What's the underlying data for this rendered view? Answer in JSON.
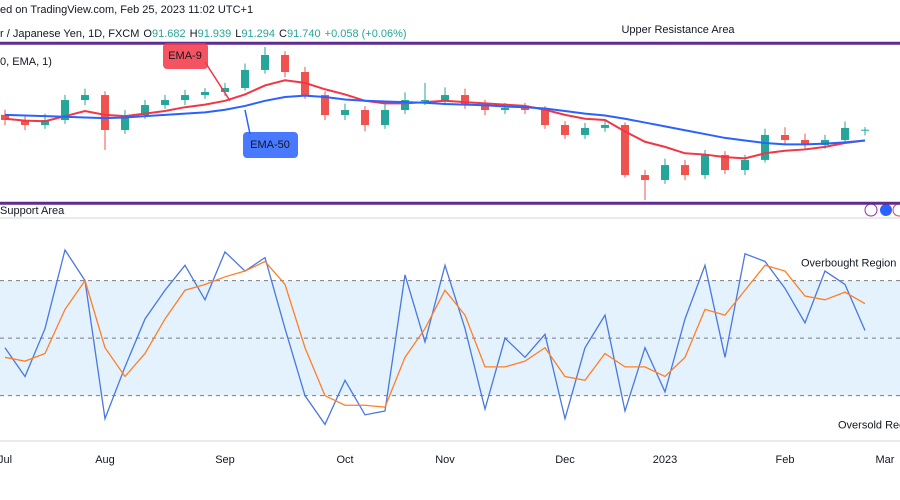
{
  "header": {
    "source": "ed on TradingView.com, Feb 25, 2023 11:02 UTC+1",
    "symbol": "r / Japanese Yen, 1D, FXCM",
    "ohlc": [
      {
        "key": "O",
        "value": "91.682"
      },
      {
        "key": "H",
        "value": "91.939"
      },
      {
        "key": "L",
        "value": "91.294"
      },
      {
        "key": "C",
        "value": "91.740"
      }
    ],
    "change": "+0.058 (+0.06%)",
    "indicator": "0, EMA, 1)"
  },
  "chart_data": [
    {
      "type": "candlestick",
      "ylim": [
        85,
        100
      ],
      "up_color": "#26a69a",
      "down_color": "#ef5350",
      "open": [
        92.9,
        92.5,
        92.11,
        92.5,
        94.06,
        94.45,
        91.72,
        92.89,
        93.67,
        94.06,
        94.45,
        94.69,
        95.0,
        96.41,
        97.58,
        96.25,
        94.45,
        92.89,
        93.28,
        92.11,
        93.28,
        94.06,
        94.06,
        94.45,
        93.67,
        93.28,
        93.44,
        93.28,
        92.11,
        91.33,
        91.88,
        92.11,
        88.2,
        87.81,
        88.98,
        88.2,
        89.77,
        88.59,
        89.38,
        91.33,
        90.94,
        90.55,
        90.94,
        91.682,
        null
      ],
      "high": [
        93.3,
        92.9,
        93.0,
        94.46,
        94.95,
        94.75,
        93.29,
        94.07,
        94.46,
        94.85,
        94.99,
        95.4,
        96.91,
        98.2,
        97.88,
        96.65,
        94.75,
        93.78,
        93.58,
        93.78,
        94.66,
        95.4,
        95.05,
        94.95,
        94.07,
        93.84,
        93.84,
        93.58,
        92.41,
        92.28,
        92.51,
        92.31,
        88.6,
        89.48,
        89.38,
        90.17,
        90.07,
        89.78,
        91.83,
        91.93,
        91.44,
        91.34,
        92.38,
        91.939,
        null
      ],
      "low": [
        92.1,
        91.71,
        91.81,
        92.2,
        93.66,
        90.16,
        91.42,
        92.59,
        93.37,
        93.66,
        94.15,
        94.39,
        94.8,
        96.11,
        95.85,
        94.15,
        92.49,
        92.49,
        91.61,
        91.81,
        92.98,
        93.66,
        93.76,
        93.37,
        92.88,
        92.98,
        92.98,
        91.81,
        91.03,
        91.03,
        91.58,
        88.0,
        86.25,
        87.51,
        87.8,
        87.9,
        88.29,
        88.19,
        89.18,
        90.64,
        90.25,
        90.25,
        90.64,
        91.294,
        null
      ],
      "close": [
        92.5,
        92.11,
        92.5,
        94.06,
        94.45,
        91.72,
        92.89,
        93.67,
        94.06,
        94.45,
        94.69,
        95.0,
        96.41,
        97.58,
        96.25,
        94.45,
        92.89,
        93.28,
        92.11,
        93.28,
        94.06,
        94.06,
        94.45,
        93.67,
        93.28,
        93.44,
        93.28,
        92.11,
        91.33,
        91.88,
        92.11,
        88.2,
        87.81,
        88.98,
        88.2,
        89.77,
        88.59,
        89.38,
        91.33,
        90.94,
        90.55,
        90.94,
        91.88,
        91.74,
        null
      ],
      "series": [
        {
          "name": "EMA-9",
          "color": "#f23645",
          "values": [
            92.6,
            92.45,
            92.4,
            92.8,
            93.2,
            92.9,
            92.8,
            93.0,
            93.2,
            93.5,
            93.7,
            94.0,
            94.5,
            95.2,
            95.6,
            95.4,
            94.9,
            94.5,
            94.0,
            93.8,
            93.8,
            93.9,
            94.0,
            93.9,
            93.8,
            93.7,
            93.6,
            93.3,
            92.9,
            92.6,
            92.5,
            91.6,
            90.8,
            90.4,
            89.9,
            89.8,
            89.6,
            89.5,
            89.9,
            90.1,
            90.2,
            90.4,
            90.7,
            90.9,
            null
          ]
        },
        {
          "name": "EMA-50",
          "color": "#2962ff",
          "values": [
            92.9,
            92.85,
            92.8,
            92.75,
            92.7,
            92.65,
            92.7,
            92.8,
            92.9,
            93.0,
            93.1,
            93.3,
            93.6,
            94.0,
            94.3,
            94.4,
            94.3,
            94.1,
            94.0,
            93.95,
            93.9,
            93.85,
            93.75,
            93.7,
            93.65,
            93.55,
            93.5,
            93.4,
            93.2,
            93.0,
            92.85,
            92.6,
            92.3,
            92.0,
            91.7,
            91.4,
            91.1,
            90.9,
            90.7,
            90.6,
            90.6,
            90.65,
            90.75,
            90.9,
            null
          ]
        }
      ],
      "levels": [
        {
          "label": "Upper Resistance Area",
          "value": 98.5,
          "color": "#5e2d91"
        },
        {
          "label": "Support Area",
          "value": 86,
          "color": "#5e2d91"
        }
      ]
    },
    {
      "type": "line",
      "ylim": [
        0,
        100
      ],
      "band_color": "#e3f2fd",
      "categories": [
        "Jul",
        null,
        null,
        null,
        null,
        "Aug",
        null,
        null,
        null,
        null,
        null,
        "Sep",
        null,
        null,
        null,
        null,
        null,
        "Oct",
        null,
        null,
        null,
        null,
        "Nov",
        null,
        null,
        null,
        null,
        null,
        "Dec",
        null,
        null,
        null,
        null,
        "2023",
        null,
        null,
        null,
        null,
        null,
        "Feb",
        null,
        null,
        null,
        null,
        "Mar"
      ],
      "series": [
        {
          "color": "#4a78e0",
          "values": [
            45,
            30,
            55,
            96,
            80,
            8,
            35,
            60,
            75,
            88,
            70,
            95,
            85,
            92,
            55,
            20,
            5,
            28,
            10,
            12,
            83,
            48,
            88,
            55,
            13,
            50,
            40,
            52,
            8,
            45,
            62,
            12,
            45,
            22,
            60,
            88,
            40,
            94,
            90,
            76,
            58,
            85,
            78,
            54,
            null
          ]
        },
        {
          "color": "#ff7f27",
          "values": [
            40,
            38,
            42,
            65,
            80,
            45,
            30,
            42,
            60,
            75,
            78,
            82,
            85,
            90,
            78,
            45,
            20,
            15,
            15,
            14,
            40,
            55,
            75,
            62,
            35,
            35,
            38,
            45,
            30,
            28,
            42,
            35,
            35,
            30,
            40,
            65,
            62,
            75,
            88,
            85,
            72,
            70,
            74,
            68,
            null
          ]
        }
      ],
      "levels": [
        {
          "label": "Overbought Region",
          "value": 80
        },
        {
          "value": 50
        },
        {
          "label": "Oversold Region",
          "value": 20
        }
      ]
    }
  ]
}
